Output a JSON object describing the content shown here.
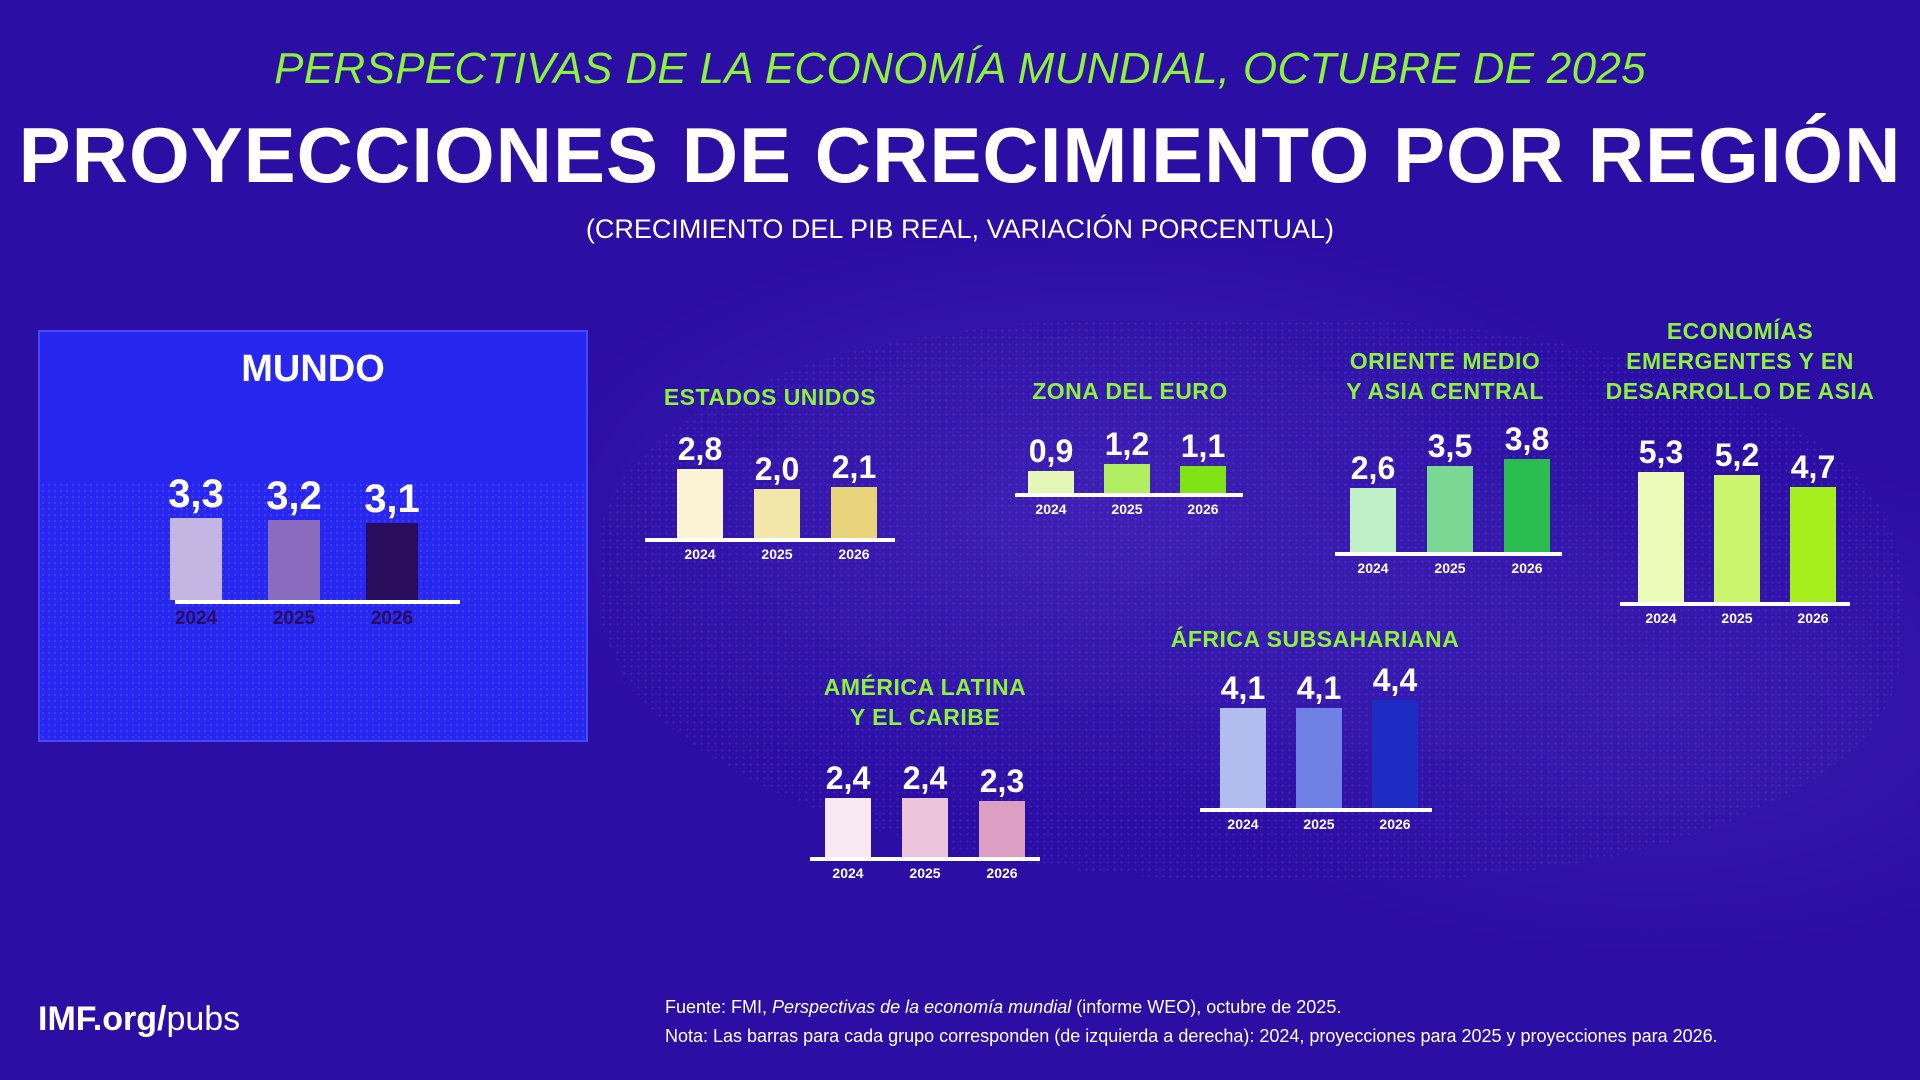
{
  "header": {
    "kicker": "PERSPECTIVAS DE LA ECONOMÍA MUNDIAL, OCTUBRE DE 2025",
    "title": "PROYECCIONES DE CRECIMIENTO POR REGIÓN",
    "subtitle": "(CRECIMIENTO DEL PIB REAL, VARIACIÓN PORCENTUAL)"
  },
  "footer": {
    "logo_bold": "IMF.org/",
    "logo_rest": "pubs",
    "source_prefix": "Fuente: FMI, ",
    "source_italic": "Perspectivas de la economía mundial",
    "source_suffix": " (informe WEO), octubre de 2025.",
    "note": "Nota: Las barras para cada grupo corresponden (de izquierda a derecha): 2024, proyecciones para 2025 y proyecciones para 2026."
  },
  "chart_data": [
    {
      "type": "bar",
      "title": "MUNDO",
      "categories": [
        "2024",
        "2025",
        "2026"
      ],
      "values": [
        3.3,
        3.2,
        3.1
      ],
      "labels": [
        "3,3",
        "3,2",
        "3,1"
      ],
      "colors": [
        "#c3b6e2",
        "#8a6cbf",
        "#2a0c5c"
      ],
      "year_color": "#2a0c5c"
    },
    {
      "type": "bar",
      "title": "ESTADOS UNIDOS",
      "categories": [
        "2024",
        "2025",
        "2026"
      ],
      "values": [
        2.8,
        2.0,
        2.1
      ],
      "labels": [
        "2,8",
        "2,0",
        "2,1"
      ],
      "colors": [
        "#fbf3d3",
        "#f2e6a8",
        "#e8d47a"
      ]
    },
    {
      "type": "bar",
      "title": "ZONA DEL EURO",
      "categories": [
        "2024",
        "2025",
        "2026"
      ],
      "values": [
        0.9,
        1.2,
        1.1
      ],
      "labels": [
        "0,9",
        "1,2",
        "1,1"
      ],
      "colors": [
        "#e4f7b6",
        "#b2ee62",
        "#7fe316"
      ]
    },
    {
      "type": "bar",
      "title": "ORIENTE MEDIO\nY ASIA CENTRAL",
      "categories": [
        "2024",
        "2025",
        "2026"
      ],
      "values": [
        2.6,
        3.5,
        3.8
      ],
      "labels": [
        "2,6",
        "3,5",
        "3,8"
      ],
      "colors": [
        "#bff0c6",
        "#7ad892",
        "#2cbd52"
      ]
    },
    {
      "type": "bar",
      "title": "ECONOMÍAS\nEMERGENTES Y EN\nDESARROLLO DE ASIA",
      "categories": [
        "2024",
        "2025",
        "2026"
      ],
      "values": [
        5.3,
        5.2,
        4.7
      ],
      "labels": [
        "5,3",
        "5,2",
        "4,7"
      ],
      "colors": [
        "#ecfab8",
        "#ccf56e",
        "#a6ee1e"
      ]
    },
    {
      "type": "bar",
      "title": "ÁFRICA SUBSAHARIANA",
      "categories": [
        "2024",
        "2025",
        "2026"
      ],
      "values": [
        4.1,
        4.1,
        4.4
      ],
      "labels": [
        "4,1",
        "4,1",
        "4,4"
      ],
      "colors": [
        "#b1bcef",
        "#6f81e4",
        "#1f2cc4"
      ]
    },
    {
      "type": "bar",
      "title": "AMÉRICA LATINA\nY EL CARIBE",
      "categories": [
        "2024",
        "2025",
        "2026"
      ],
      "values": [
        2.4,
        2.4,
        2.3
      ],
      "labels": [
        "2,4",
        "2,4",
        "2,3"
      ],
      "colors": [
        "#f8e8f2",
        "#ecc4dc",
        "#dc9ec2"
      ]
    }
  ]
}
